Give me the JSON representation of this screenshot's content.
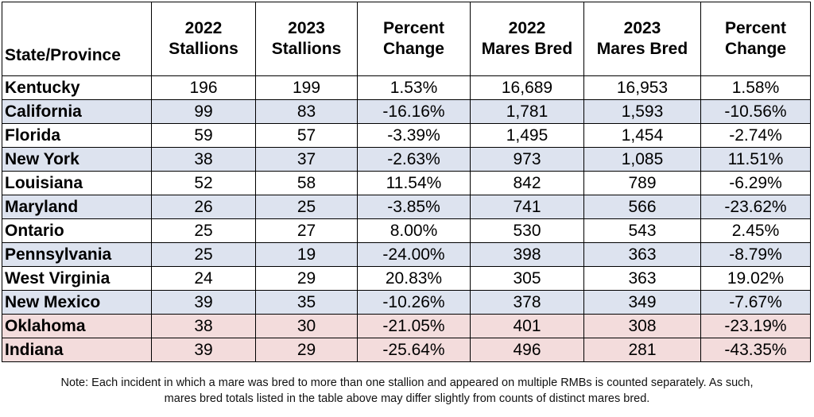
{
  "table": {
    "headers": [
      {
        "line1": "State/Province",
        "line2": ""
      },
      {
        "line1": "2022",
        "line2": "Stallions"
      },
      {
        "line1": "2023",
        "line2": "Stallions"
      },
      {
        "line1": "Percent",
        "line2": "Change"
      },
      {
        "line1": "2022",
        "line2": "Mares Bred"
      },
      {
        "line1": "2023",
        "line2": "Mares Bred"
      },
      {
        "line1": "Percent",
        "line2": "Change"
      }
    ],
    "rows": [
      {
        "band": "white",
        "cells": [
          "Kentucky",
          "196",
          "199",
          "1.53%",
          "16,689",
          "16,953",
          "1.58%"
        ]
      },
      {
        "band": "blue",
        "cells": [
          "California",
          "99",
          "83",
          "-16.16%",
          "1,781",
          "1,593",
          "-10.56%"
        ]
      },
      {
        "band": "white",
        "cells": [
          "Florida",
          "59",
          "57",
          "-3.39%",
          "1,495",
          "1,454",
          "-2.74%"
        ]
      },
      {
        "band": "blue",
        "cells": [
          "New York",
          "38",
          "37",
          "-2.63%",
          "973",
          "1,085",
          "11.51%"
        ]
      },
      {
        "band": "white",
        "cells": [
          "Louisiana",
          "52",
          "58",
          "11.54%",
          "842",
          "789",
          "-6.29%"
        ]
      },
      {
        "band": "blue",
        "cells": [
          "Maryland",
          "26",
          "25",
          "-3.85%",
          "741",
          "566",
          "-23.62%"
        ]
      },
      {
        "band": "white",
        "cells": [
          "Ontario",
          "25",
          "27",
          "8.00%",
          "530",
          "543",
          "2.45%"
        ]
      },
      {
        "band": "blue",
        "cells": [
          "Pennsylvania",
          "25",
          "19",
          "-24.00%",
          "398",
          "363",
          "-8.79%"
        ]
      },
      {
        "band": "white",
        "cells": [
          "West Virginia",
          "24",
          "29",
          "20.83%",
          "305",
          "363",
          "19.02%"
        ]
      },
      {
        "band": "blue",
        "cells": [
          "New Mexico",
          "39",
          "35",
          "-10.26%",
          "378",
          "349",
          "-7.67%"
        ]
      },
      {
        "band": "pink",
        "cells": [
          "Oklahoma",
          "38",
          "30",
          "-21.05%",
          "401",
          "308",
          "-23.19%"
        ]
      },
      {
        "band": "pink",
        "cells": [
          "Indiana",
          "39",
          "29",
          "-25.64%",
          "496",
          "281",
          "-43.35%"
        ]
      }
    ]
  },
  "note": {
    "line1": "Note: Each incident in which a mare was bred to more than one stallion and appeared on multiple RMBs is counted separately. As such,",
    "line2": "mares bred totals listed in the table above may differ slightly from counts of distinct mares bred."
  },
  "colors": {
    "band_blue": "#dde3ef",
    "band_pink": "#f3dcdc",
    "band_white": "#ffffff"
  }
}
